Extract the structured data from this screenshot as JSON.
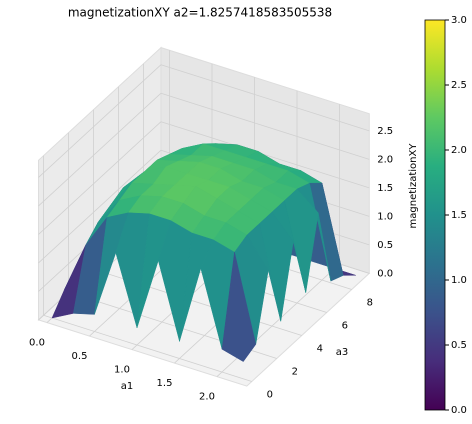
{
  "chart_data": {
    "type": "surface",
    "title": "magnetizationXY a2=1.8257418583505538",
    "xlabel": "a1",
    "ylabel": "a3",
    "zlabel": "magnetizationXY",
    "x": [
      0,
      0.25,
      0.5,
      0.75,
      1.0,
      1.25,
      1.5,
      1.75,
      2.0,
      2.25
    ],
    "y": [
      0,
      1,
      2,
      3,
      4,
      5,
      6,
      7,
      8,
      9
    ],
    "z": [
      [
        0,
        0.3,
        0.5,
        0.6,
        0.6,
        0.6,
        0.5,
        0.4,
        0.3,
        0
      ],
      [
        0.2,
        1.2,
        1.4,
        1.5,
        1.6,
        1.5,
        1.4,
        1.3,
        1.0,
        0
      ],
      [
        0.3,
        1.8,
        1.9,
        2.0,
        2.0,
        2.0,
        1.9,
        1.8,
        1.6,
        0
      ],
      [
        1.5,
        2.0,
        2.1,
        2.1,
        2.2,
        2.1,
        2.0,
        2.0,
        1.8,
        0
      ],
      [
        0.3,
        2.1,
        2.2,
        2.2,
        2.2,
        2.2,
        2.1,
        2.0,
        1.9,
        0
      ],
      [
        1.6,
        2.1,
        2.2,
        2.3,
        2.2,
        2.2,
        2.1,
        2.0,
        1.9,
        0
      ],
      [
        0.3,
        2.0,
        2.1,
        2.2,
        2.2,
        2.1,
        2.1,
        2.0,
        1.8,
        0
      ],
      [
        1.7,
        2.0,
        2.1,
        2.1,
        2.1,
        2.1,
        2.0,
        2.0,
        1.8,
        0
      ],
      [
        0.4,
        1.9,
        2.0,
        2.0,
        2.0,
        2.0,
        2.0,
        1.9,
        1.7,
        0
      ],
      [
        0.3,
        0.4,
        1.5,
        0.4,
        1.6,
        0.5,
        1.7,
        0.3,
        0.2,
        0
      ]
    ],
    "colormap": "viridis",
    "xlim": [
      -0.1,
      2.35
    ],
    "ylim": [
      -0.4,
      9.4
    ],
    "zlim": [
      0,
      2.8
    ],
    "xticks": [
      {
        "value": 0,
        "label": "0.0"
      },
      0.5,
      {
        "value": 1,
        "label": "1.0"
      },
      1.5,
      {
        "value": 2,
        "label": "2.0"
      }
    ],
    "yticks": [
      0,
      2,
      4,
      6,
      8
    ],
    "zticks": [
      {
        "value": 0,
        "label": "0.0"
      },
      0.5,
      {
        "value": 1,
        "label": "1.0"
      },
      1.5,
      {
        "value": 2,
        "label": "2.0"
      },
      2.5
    ],
    "clim": [
      0,
      3
    ],
    "cticks": [
      {
        "value": 0,
        "label": "0.0"
      },
      0.5,
      {
        "value": 1,
        "label": "1.0"
      },
      1.5,
      {
        "value": 2,
        "label": "2.0"
      },
      2.5,
      {
        "value": 3,
        "label": "3.0"
      }
    ],
    "grid": true
  }
}
